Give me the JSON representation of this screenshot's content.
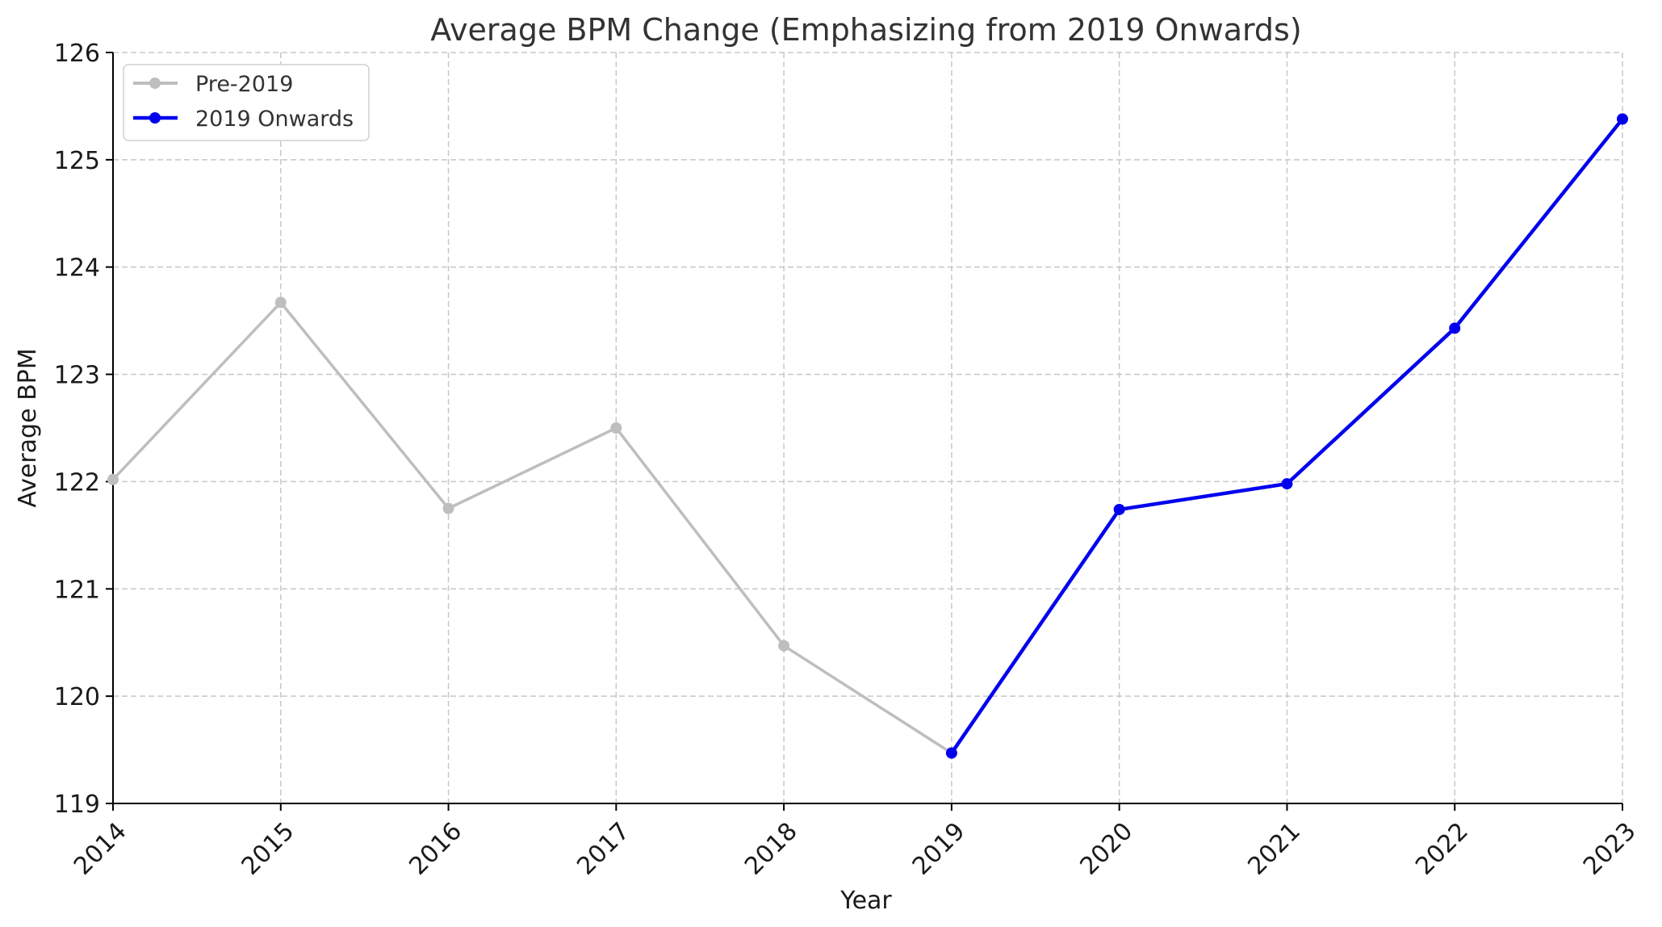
{
  "chart_data": {
    "type": "line",
    "title": "Average BPM Change (Emphasizing from 2019 Onwards)",
    "xlabel": "Year",
    "ylabel": "Average BPM",
    "x": [
      2014,
      2015,
      2016,
      2017,
      2018,
      2019,
      2020,
      2021,
      2022,
      2023
    ],
    "xlim": [
      2014,
      2023
    ],
    "ylim": [
      119,
      126
    ],
    "xticks": [
      "2014",
      "2015",
      "2016",
      "2017",
      "2018",
      "2019",
      "2020",
      "2021",
      "2022",
      "2023"
    ],
    "yticks": [
      "119",
      "120",
      "121",
      "122",
      "123",
      "124",
      "125",
      "126"
    ],
    "grid": true,
    "legend_position": "top-left",
    "series": [
      {
        "name": "Pre-2019",
        "color": "#bebebe",
        "x": [
          2014,
          2015,
          2016,
          2017,
          2018,
          2019
        ],
        "values": [
          122.02,
          123.67,
          121.75,
          122.5,
          120.47,
          119.47
        ]
      },
      {
        "name": "2019 Onwards",
        "color": "#0000ee",
        "x": [
          2019,
          2020,
          2021,
          2022,
          2023
        ],
        "values": [
          119.47,
          121.74,
          121.98,
          123.43,
          125.38
        ]
      }
    ]
  }
}
